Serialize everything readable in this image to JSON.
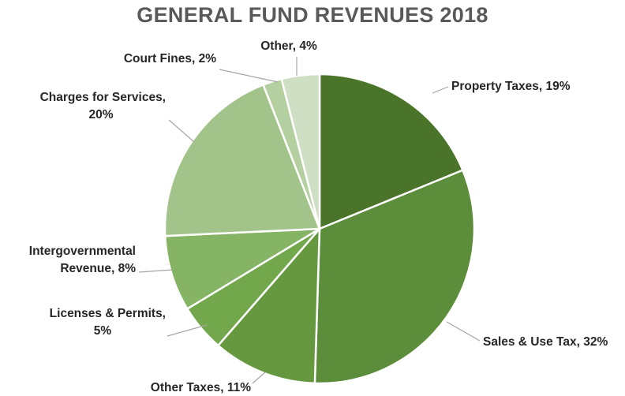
{
  "chart_data": {
    "type": "pie",
    "title": "GENERAL FUND REVENUES 2018",
    "slices": [
      {
        "label": "Property Taxes",
        "value": 19,
        "display": "19%",
        "color": "#4a7429"
      },
      {
        "label": "Sales & Use Tax",
        "value": 32,
        "display": "32%",
        "color": "#5b8d3a"
      },
      {
        "label": "Other Taxes",
        "value": 11,
        "display": "11%",
        "color": "#66993f"
      },
      {
        "label": "Licenses & Permits",
        "value": 5,
        "display": "5%",
        "color": "#72a84b"
      },
      {
        "label": "Intergovernmental Revenue",
        "value": 8,
        "display": "8%",
        "color": "#86b465"
      },
      {
        "label": "Charges for Services",
        "value": 20,
        "display": "20%",
        "color": "#a2c38a"
      },
      {
        "label": "Court Fines",
        "value": 2,
        "display": "2%",
        "color": "#b4cfa0"
      },
      {
        "label": "Other",
        "value": 4,
        "display": "4%",
        "color": "#cfdfc3"
      }
    ]
  }
}
